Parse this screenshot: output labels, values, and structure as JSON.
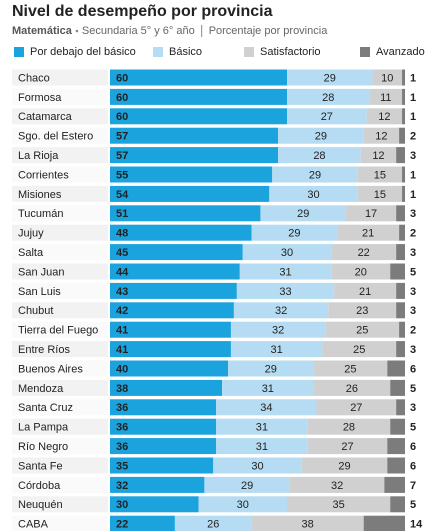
{
  "chart_data": {
    "type": "stacked-bar-horizontal",
    "title": "Nivel de desempeño por provincia",
    "subject": "Matemática",
    "subtitle": "Secundaria 5° y 6° año",
    "note": "Porcentaje por provincia",
    "xlim": [
      0,
      100
    ],
    "categories": [
      "Chaco",
      "Formosa",
      "Catamarca",
      "Sgo. del Estero",
      "La Rioja",
      "Corrientes",
      "Misiones",
      "Tucumán",
      "Jujuy",
      "Salta",
      "San Juan",
      "San Luis",
      "Chubut",
      "Tierra del Fuego",
      "Entre Ríos",
      "Buenos Aires",
      "Mendoza",
      "Santa Cruz",
      "La Pampa",
      "Río Negro",
      "Santa Fe",
      "Córdoba",
      "Neuquén",
      "CABA"
    ],
    "series": [
      {
        "name": "Por debajo del básico",
        "color": "#1ba3de",
        "values": [
          60,
          60,
          60,
          57,
          57,
          55,
          54,
          51,
          48,
          45,
          44,
          43,
          42,
          41,
          41,
          40,
          38,
          36,
          36,
          36,
          35,
          32,
          30,
          22
        ]
      },
      {
        "name": "Básico",
        "color": "#b5dcf3",
        "values": [
          29,
          28,
          27,
          29,
          28,
          29,
          30,
          29,
          29,
          30,
          31,
          33,
          32,
          32,
          31,
          29,
          31,
          34,
          31,
          31,
          30,
          29,
          30,
          26
        ]
      },
      {
        "name": "Satisfactorio",
        "color": "#d0d0d0",
        "values": [
          10,
          11,
          12,
          12,
          12,
          15,
          15,
          17,
          21,
          22,
          20,
          21,
          23,
          25,
          25,
          25,
          26,
          27,
          28,
          27,
          29,
          32,
          35,
          38
        ]
      },
      {
        "name": "Avanzado",
        "color": "#7c7c7c",
        "values": [
          1,
          1,
          1,
          2,
          3,
          1,
          1,
          3,
          2,
          3,
          5,
          3,
          3,
          2,
          3,
          6,
          5,
          3,
          5,
          6,
          6,
          7,
          5,
          14
        ]
      }
    ]
  }
}
